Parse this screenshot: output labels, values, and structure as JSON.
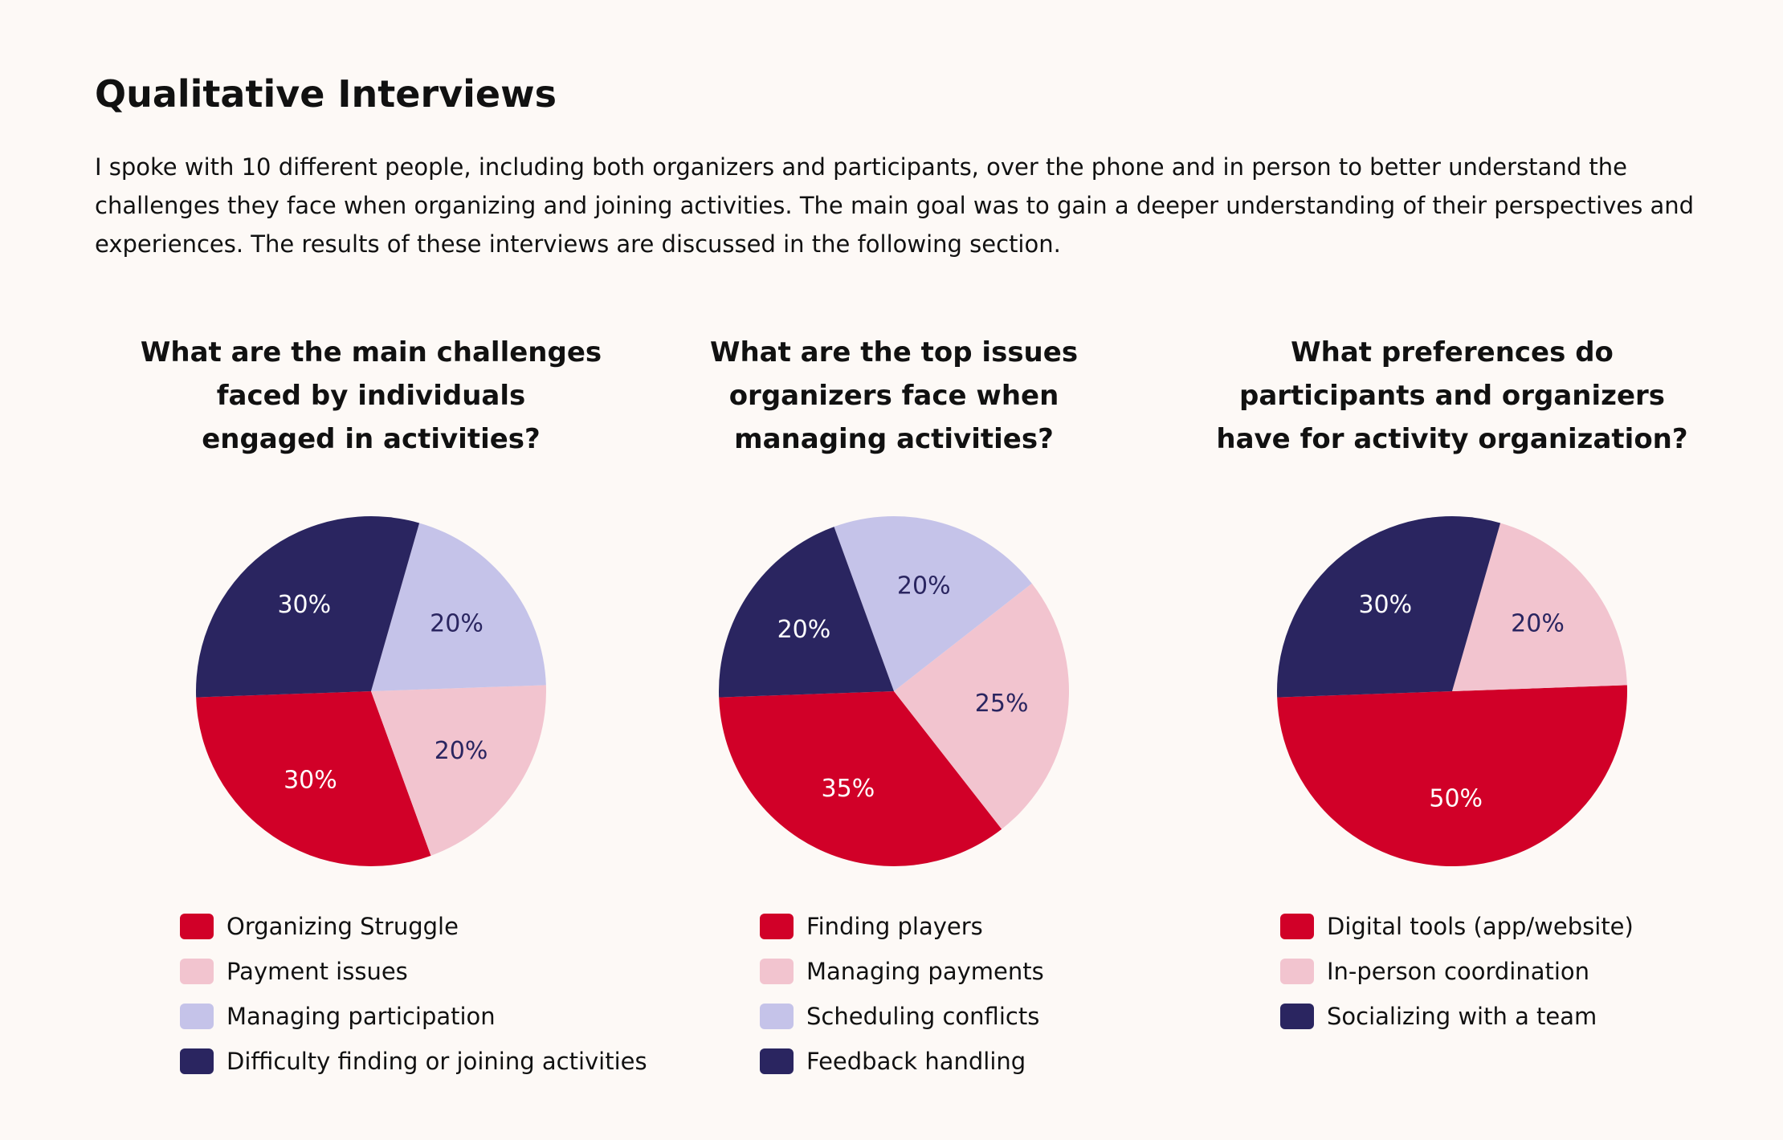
{
  "header": {
    "title": "Qualitative Interviews",
    "paragraph": "I spoke with 10 different people, including both organizers and participants, over the phone and in person to better understand the challenges they face when organizing and joining activities. The main goal was to gain a deeper understanding of their perspectives and experiences. The results of these interviews are discussed in the following section."
  },
  "chart_data": [
    {
      "type": "pie",
      "title": "What are the main challenges\nfaced by individuals\nengaged in activities?",
      "categories": [
        "Organizing Struggle",
        "Payment issues",
        "Managing participation",
        "Difficulty finding or joining activities"
      ],
      "values": [
        30,
        20,
        20,
        30
      ],
      "value_labels": [
        "30%",
        "20%",
        "20%",
        "30%"
      ],
      "colors": [
        "#d10028",
        "#f2c4cf",
        "#c5c3e9",
        "#2a2560"
      ]
    },
    {
      "type": "pie",
      "title": "What are the top issues\norganizers face when\nmanaging activities?",
      "categories": [
        "Finding players",
        "Managing payments",
        "Scheduling conflicts",
        "Feedback handling"
      ],
      "values": [
        35,
        25,
        20,
        20
      ],
      "value_labels": [
        "35%",
        "25%",
        "20%",
        "20%"
      ],
      "colors": [
        "#d10028",
        "#f2c4cf",
        "#c5c3e9",
        "#2a2560"
      ]
    },
    {
      "type": "pie",
      "title": "What preferences do\nparticipants and organizers\nhave for activity organization?",
      "categories": [
        "Digital tools (app/website)",
        "In-person coordination",
        "Socializing with a team"
      ],
      "values": [
        50,
        20,
        30
      ],
      "value_labels": [
        "50%",
        "20%",
        "30%"
      ],
      "colors": [
        "#d10028",
        "#f2c4cf",
        "#2a2560"
      ]
    }
  ]
}
